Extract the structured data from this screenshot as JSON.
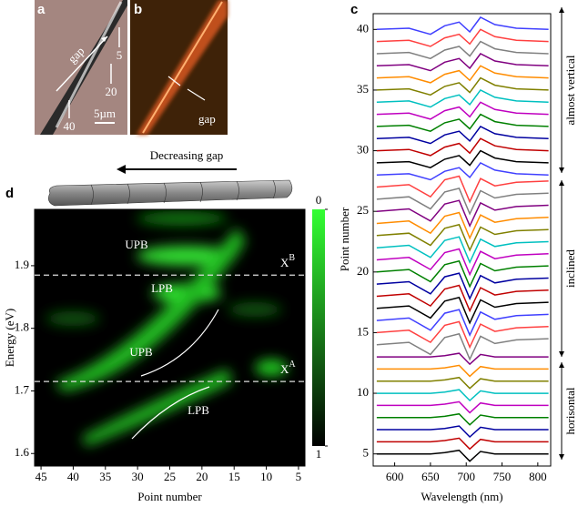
{
  "panels": {
    "a": {
      "label": "a",
      "annotations": [
        "gap",
        "5",
        "20",
        "40"
      ],
      "scale_bar": "5µm"
    },
    "b": {
      "label": "b",
      "annotation": "gap"
    },
    "arrow": "Decreasing gap"
  },
  "chart_data": [
    {
      "type": "heatmap",
      "panel_label": "d",
      "ylabel": "Energy (eV)",
      "xlabel": "Point number",
      "xlim": [
        46,
        4
      ],
      "xticks": [
        45,
        40,
        35,
        30,
        25,
        20,
        15,
        10,
        5
      ],
      "ylim": [
        1.58,
        1.99
      ],
      "yticks": [
        1.6,
        1.7,
        1.8,
        1.9
      ],
      "clim": [
        0,
        1
      ],
      "cticks": [
        0,
        1
      ],
      "reference_lines": [
        {
          "value": 1.885,
          "label": "X",
          "sup": "B"
        },
        {
          "value": 1.715,
          "label": "X",
          "sup": "A"
        }
      ],
      "annotations": [
        "UPB",
        "LPB",
        "UPB",
        "LPB"
      ]
    },
    {
      "type": "line",
      "panel_label": "c",
      "xlabel": "Wavelength (nm)",
      "ylabel": "Point number",
      "xlim": [
        570,
        818
      ],
      "xticks": [
        600,
        650,
        700,
        750,
        800
      ],
      "ylim": [
        4,
        41.3
      ],
      "yticks": [
        5,
        10,
        15,
        20,
        25,
        30,
        35,
        40
      ],
      "regions": [
        "horisontal",
        "inclined",
        "almost vertical"
      ],
      "x": [
        575,
        620,
        650,
        670,
        690,
        705,
        720,
        740,
        770,
        815
      ],
      "series": [
        {
          "color": "#000000",
          "values": [
            5,
            5,
            5,
            5.1,
            5.3,
            4.4,
            5.2,
            5,
            5,
            5
          ]
        },
        {
          "color": "#c00000",
          "values": [
            6,
            6,
            6,
            6.1,
            6.3,
            5.4,
            6.2,
            6,
            6,
            6
          ]
        },
        {
          "color": "#0000a0",
          "values": [
            7,
            7,
            7,
            7.1,
            7.3,
            6.4,
            7.2,
            7,
            7,
            7
          ]
        },
        {
          "color": "#008000",
          "values": [
            8,
            8,
            8,
            8.1,
            8.3,
            7.4,
            8.2,
            8,
            8,
            8
          ]
        },
        {
          "color": "#c000c0",
          "values": [
            9,
            9,
            9,
            9.1,
            9.3,
            8.4,
            9.2,
            9,
            9,
            9
          ]
        },
        {
          "color": "#00c0c0",
          "values": [
            10,
            10,
            10,
            10.1,
            10.3,
            9.4,
            10.2,
            10,
            10,
            10
          ]
        },
        {
          "color": "#808000",
          "values": [
            11,
            11,
            11,
            11.1,
            11.3,
            10.4,
            11.2,
            11,
            11,
            11
          ]
        },
        {
          "color": "#ff8c00",
          "values": [
            12,
            12,
            12,
            12.1,
            12.3,
            11.4,
            12.2,
            12,
            12,
            12
          ]
        },
        {
          "color": "#800080",
          "values": [
            13,
            13,
            13,
            13.1,
            13.3,
            12.4,
            13.2,
            13,
            13,
            13
          ]
        },
        {
          "color": "#808080",
          "values": [
            14,
            14.2,
            13.2,
            14.6,
            14.9,
            12.8,
            14.7,
            14.1,
            14.4,
            14.5
          ]
        },
        {
          "color": "#ff4040",
          "values": [
            15,
            15.2,
            14.2,
            15.6,
            15.9,
            13.8,
            15.7,
            15.1,
            15.4,
            15.5
          ]
        },
        {
          "color": "#4040ff",
          "values": [
            16,
            16.2,
            15.2,
            16.6,
            16.9,
            14.8,
            16.7,
            16.1,
            16.4,
            16.5
          ]
        },
        {
          "color": "#000000",
          "values": [
            17,
            17.2,
            16.2,
            17.6,
            17.9,
            15.8,
            17.7,
            17.1,
            17.4,
            17.5
          ]
        },
        {
          "color": "#c00000",
          "values": [
            18,
            18.2,
            17.2,
            18.6,
            18.9,
            16.8,
            18.7,
            18.1,
            18.4,
            18.5
          ]
        },
        {
          "color": "#0000a0",
          "values": [
            19,
            19.2,
            18.2,
            19.6,
            19.9,
            17.8,
            19.7,
            19.1,
            19.4,
            19.5
          ]
        },
        {
          "color": "#008000",
          "values": [
            20,
            20.2,
            19.2,
            20.6,
            20.9,
            18.8,
            20.7,
            20.1,
            20.4,
            20.5
          ]
        },
        {
          "color": "#c000c0",
          "values": [
            21,
            21.2,
            20.2,
            21.6,
            21.9,
            19.8,
            21.7,
            21.1,
            21.4,
            21.5
          ]
        },
        {
          "color": "#00c0c0",
          "values": [
            22,
            22.2,
            21.2,
            22.6,
            22.9,
            20.8,
            22.7,
            22.1,
            22.4,
            22.5
          ]
        },
        {
          "color": "#808000",
          "values": [
            23,
            23.2,
            22.2,
            23.6,
            23.9,
            21.8,
            23.7,
            23.1,
            23.4,
            23.5
          ]
        },
        {
          "color": "#ff8c00",
          "values": [
            24,
            24.2,
            23.2,
            24.6,
            24.9,
            22.8,
            24.7,
            24.1,
            24.4,
            24.5
          ]
        },
        {
          "color": "#800080",
          "values": [
            25,
            25.2,
            24.2,
            25.6,
            25.9,
            23.8,
            25.7,
            25.1,
            25.4,
            25.5
          ]
        },
        {
          "color": "#808080",
          "values": [
            26,
            26.2,
            25.2,
            26.6,
            26.9,
            24.8,
            26.7,
            26.1,
            26.4,
            26.5
          ]
        },
        {
          "color": "#ff4040",
          "values": [
            27,
            27.2,
            26.2,
            27.6,
            27.9,
            25.8,
            27.7,
            27.1,
            27.4,
            27.5
          ]
        },
        {
          "color": "#4040ff",
          "values": [
            28,
            28.1,
            27.6,
            28.3,
            28.6,
            27.8,
            29,
            28.4,
            28.1,
            28
          ]
        },
        {
          "color": "#000000",
          "values": [
            29,
            29.1,
            28.6,
            29.3,
            29.6,
            28.8,
            30,
            29.4,
            29.1,
            29
          ]
        },
        {
          "color": "#c00000",
          "values": [
            30,
            30.1,
            29.6,
            30.3,
            30.6,
            29.8,
            31,
            30.4,
            30.1,
            30
          ]
        },
        {
          "color": "#0000a0",
          "values": [
            31,
            31.1,
            30.6,
            31.3,
            31.6,
            30.8,
            32,
            31.4,
            31.1,
            31
          ]
        },
        {
          "color": "#008000",
          "values": [
            32,
            32.1,
            31.6,
            32.3,
            32.6,
            31.8,
            33,
            32.4,
            32.1,
            32
          ]
        },
        {
          "color": "#c000c0",
          "values": [
            33,
            33.1,
            32.6,
            33.3,
            33.6,
            32.8,
            34,
            33.4,
            33.1,
            33
          ]
        },
        {
          "color": "#00c0c0",
          "values": [
            34,
            34.1,
            33.6,
            34.3,
            34.6,
            33.8,
            35,
            34.4,
            34.1,
            34
          ]
        },
        {
          "color": "#808000",
          "values": [
            35,
            35.1,
            34.6,
            35.3,
            35.6,
            34.8,
            36,
            35.4,
            35.1,
            35
          ]
        },
        {
          "color": "#ff8c00",
          "values": [
            36,
            36.1,
            35.6,
            36.3,
            36.6,
            35.8,
            37,
            36.4,
            36.1,
            36
          ]
        },
        {
          "color": "#800080",
          "values": [
            37,
            37.1,
            36.6,
            37.3,
            37.6,
            36.8,
            38,
            37.4,
            37.1,
            37
          ]
        },
        {
          "color": "#808080",
          "values": [
            38,
            38.1,
            37.6,
            38.3,
            38.6,
            37.8,
            39,
            38.4,
            38.1,
            38
          ]
        },
        {
          "color": "#ff4040",
          "values": [
            39,
            39.1,
            38.6,
            39.3,
            39.6,
            38.8,
            40,
            39.4,
            39.1,
            39
          ]
        },
        {
          "color": "#4040ff",
          "values": [
            40,
            40.1,
            39.6,
            40.3,
            40.6,
            39.8,
            41,
            40.4,
            40.1,
            40
          ]
        }
      ]
    }
  ]
}
